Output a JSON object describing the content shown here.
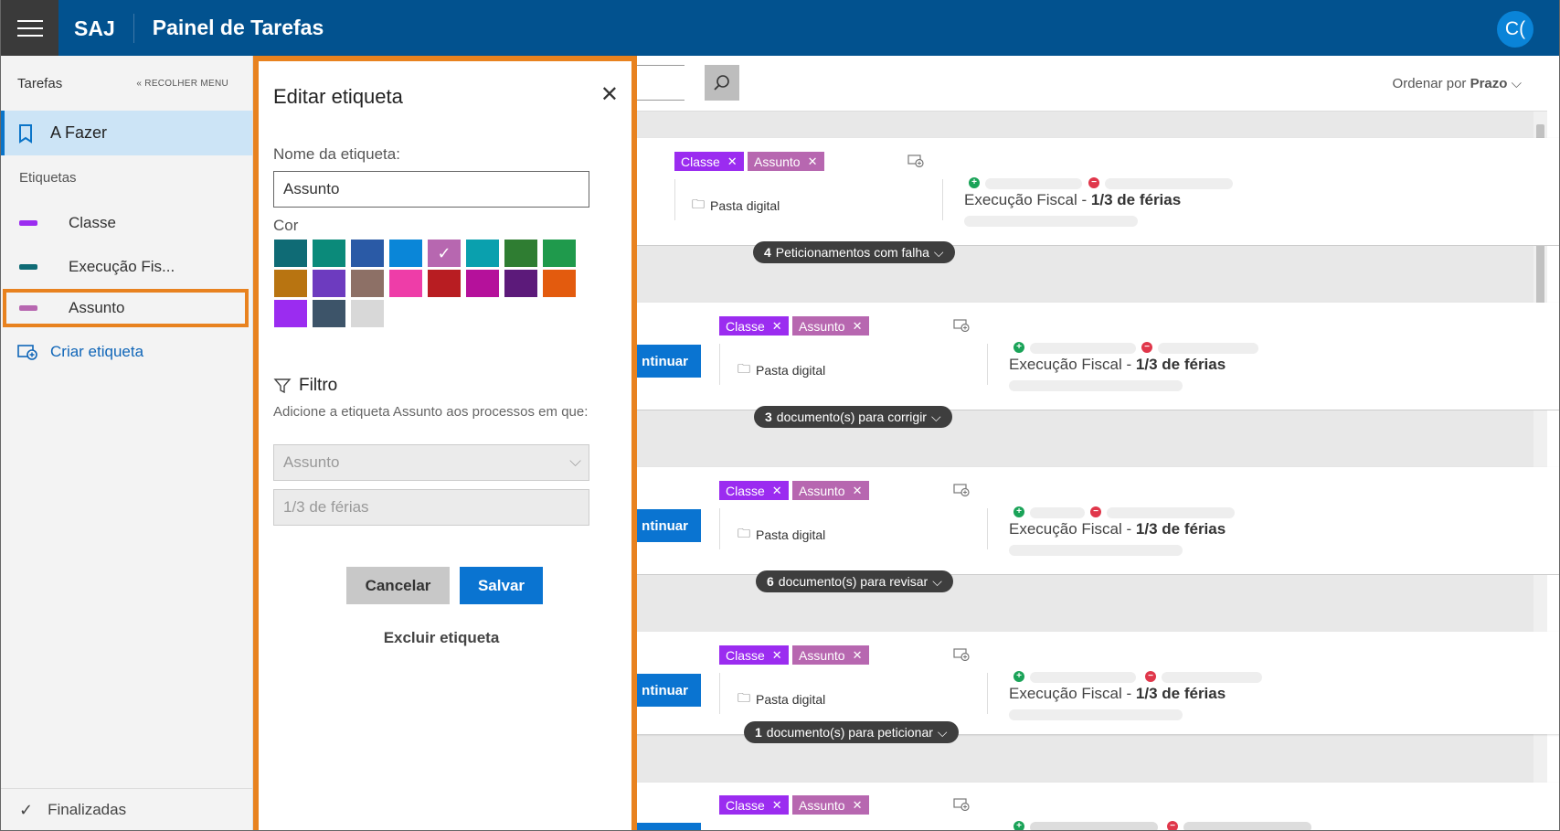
{
  "topbar": {
    "brand": "SAJ",
    "title": "Painel de Tarefas",
    "avatar": "C("
  },
  "sidebar": {
    "title": "Tarefas",
    "collapse_label": "RECOLHER MENU",
    "todo_label": "A Fazer",
    "tags_header": "Etiquetas",
    "tags": [
      {
        "label": "Classe",
        "color": "#9b2cf0"
      },
      {
        "label": "Execução Fis...",
        "color": "#0f6b75"
      },
      {
        "label": "Assunto",
        "color": "#b767b0"
      }
    ],
    "create_label": "Criar etiqueta",
    "done_label": "Finalizadas"
  },
  "main": {
    "sort_prefix": "Ordenar por",
    "sort_value": "Prazo",
    "chip_classe": "Classe",
    "chip_assunto": "Assunto",
    "pasta_label": "Pasta digital",
    "exec_prefix": "Execução Fiscal -",
    "exec_bold": "1/3 de férias",
    "continue_label": "ntinuar",
    "cards": [
      {
        "pill_count": "4",
        "pill_text": "Peticionamentos com falha"
      },
      {
        "pill_count": "3",
        "pill_text": "documento(s) para corrigir"
      },
      {
        "pill_count": "6",
        "pill_text": "documento(s) para revisar"
      },
      {
        "pill_count": "1",
        "pill_text": "documento(s) para peticionar"
      }
    ]
  },
  "dialog": {
    "title": "Editar etiqueta",
    "name_label": "Nome da etiqueta:",
    "name_value": "Assunto",
    "color_label": "Cor",
    "colors": [
      "#0f6b75",
      "#0b8a7a",
      "#2a5aa6",
      "#0a86d8",
      "#b767b0",
      "#0aa0ae",
      "#2f7d32",
      "#1f9a4c",
      "#b87411",
      "#6d3bbf",
      "#8d7066",
      "#ee3da8",
      "#b81d22",
      "#b5119b",
      "#5c1a7a",
      "#e35b0e",
      "#9b2cf0",
      "#3d5469",
      "#d8d8d8"
    ],
    "selected_color_index": 4,
    "filter_title": "Filtro",
    "filter_desc": "Adicione a etiqueta Assunto aos processos em que:",
    "select_value": "Assunto",
    "second_value": "1/3 de férias",
    "cancel_label": "Cancelar",
    "save_label": "Salvar",
    "delete_label": "Excluir etiqueta"
  }
}
